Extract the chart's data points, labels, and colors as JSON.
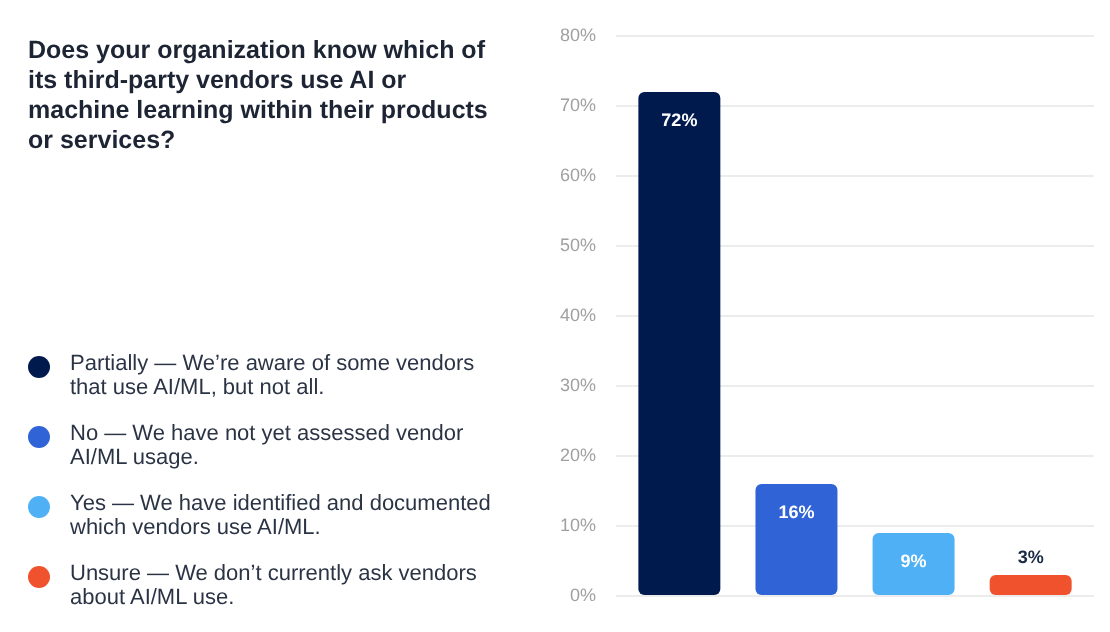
{
  "chart_data": {
    "type": "bar",
    "title": "Does your organization know which of its third-party vendors use AI or machine learning within their products or services?",
    "categories": [
      null
    ],
    "series": [
      {
        "name": "Partially — We’re aware of some vendors that use AI/ML, but not all.",
        "color": "#001a4d",
        "values": [
          72
        ]
      },
      {
        "name": "No — We have not yet assessed vendor AI/ML usage.",
        "color": "#2f63d6",
        "values": [
          16
        ]
      },
      {
        "name": "Yes — We have identified and documented which vendors use AI/ML.",
        "color": "#4fb0f5",
        "values": [
          9
        ]
      },
      {
        "name": "Unsure — We don’t currently ask vendors about AI/ML use.",
        "color": "#f0522e",
        "values": [
          3
        ]
      }
    ],
    "ylim": [
      0,
      80
    ],
    "yticks": [
      {
        "value": 0,
        "label": "0%"
      },
      {
        "value": 10,
        "label": "10%"
      },
      {
        "value": 20,
        "label": "20%"
      },
      {
        "value": 30,
        "label": "30%"
      },
      {
        "value": 40,
        "label": "40%"
      },
      {
        "value": 50,
        "label": "50%"
      },
      {
        "value": 60,
        "label": "60%"
      },
      {
        "value": 70,
        "label": "70%"
      },
      {
        "value": 80,
        "label": "80%"
      }
    ],
    "value_labels": [
      "72%",
      "16%",
      "9%",
      "3%"
    ],
    "grid": "y",
    "legend": "left"
  }
}
